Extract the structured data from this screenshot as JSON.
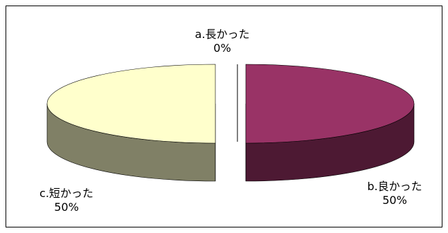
{
  "chart_data": {
    "type": "pie",
    "style": "3d-exploded",
    "title": "",
    "legend": "none",
    "slices": [
      {
        "label": "a.長かった",
        "value": 0,
        "percent_label": "0%",
        "color": "#9999ff",
        "side_color": "#4c4c80"
      },
      {
        "label": "b.良かった",
        "value": 50,
        "percent_label": "50%",
        "color": "#993366",
        "side_color": "#4d1933"
      },
      {
        "label": "c.短かった",
        "value": 50,
        "percent_label": "50%",
        "color": "#ffffcc",
        "side_color": "#808066"
      }
    ]
  }
}
